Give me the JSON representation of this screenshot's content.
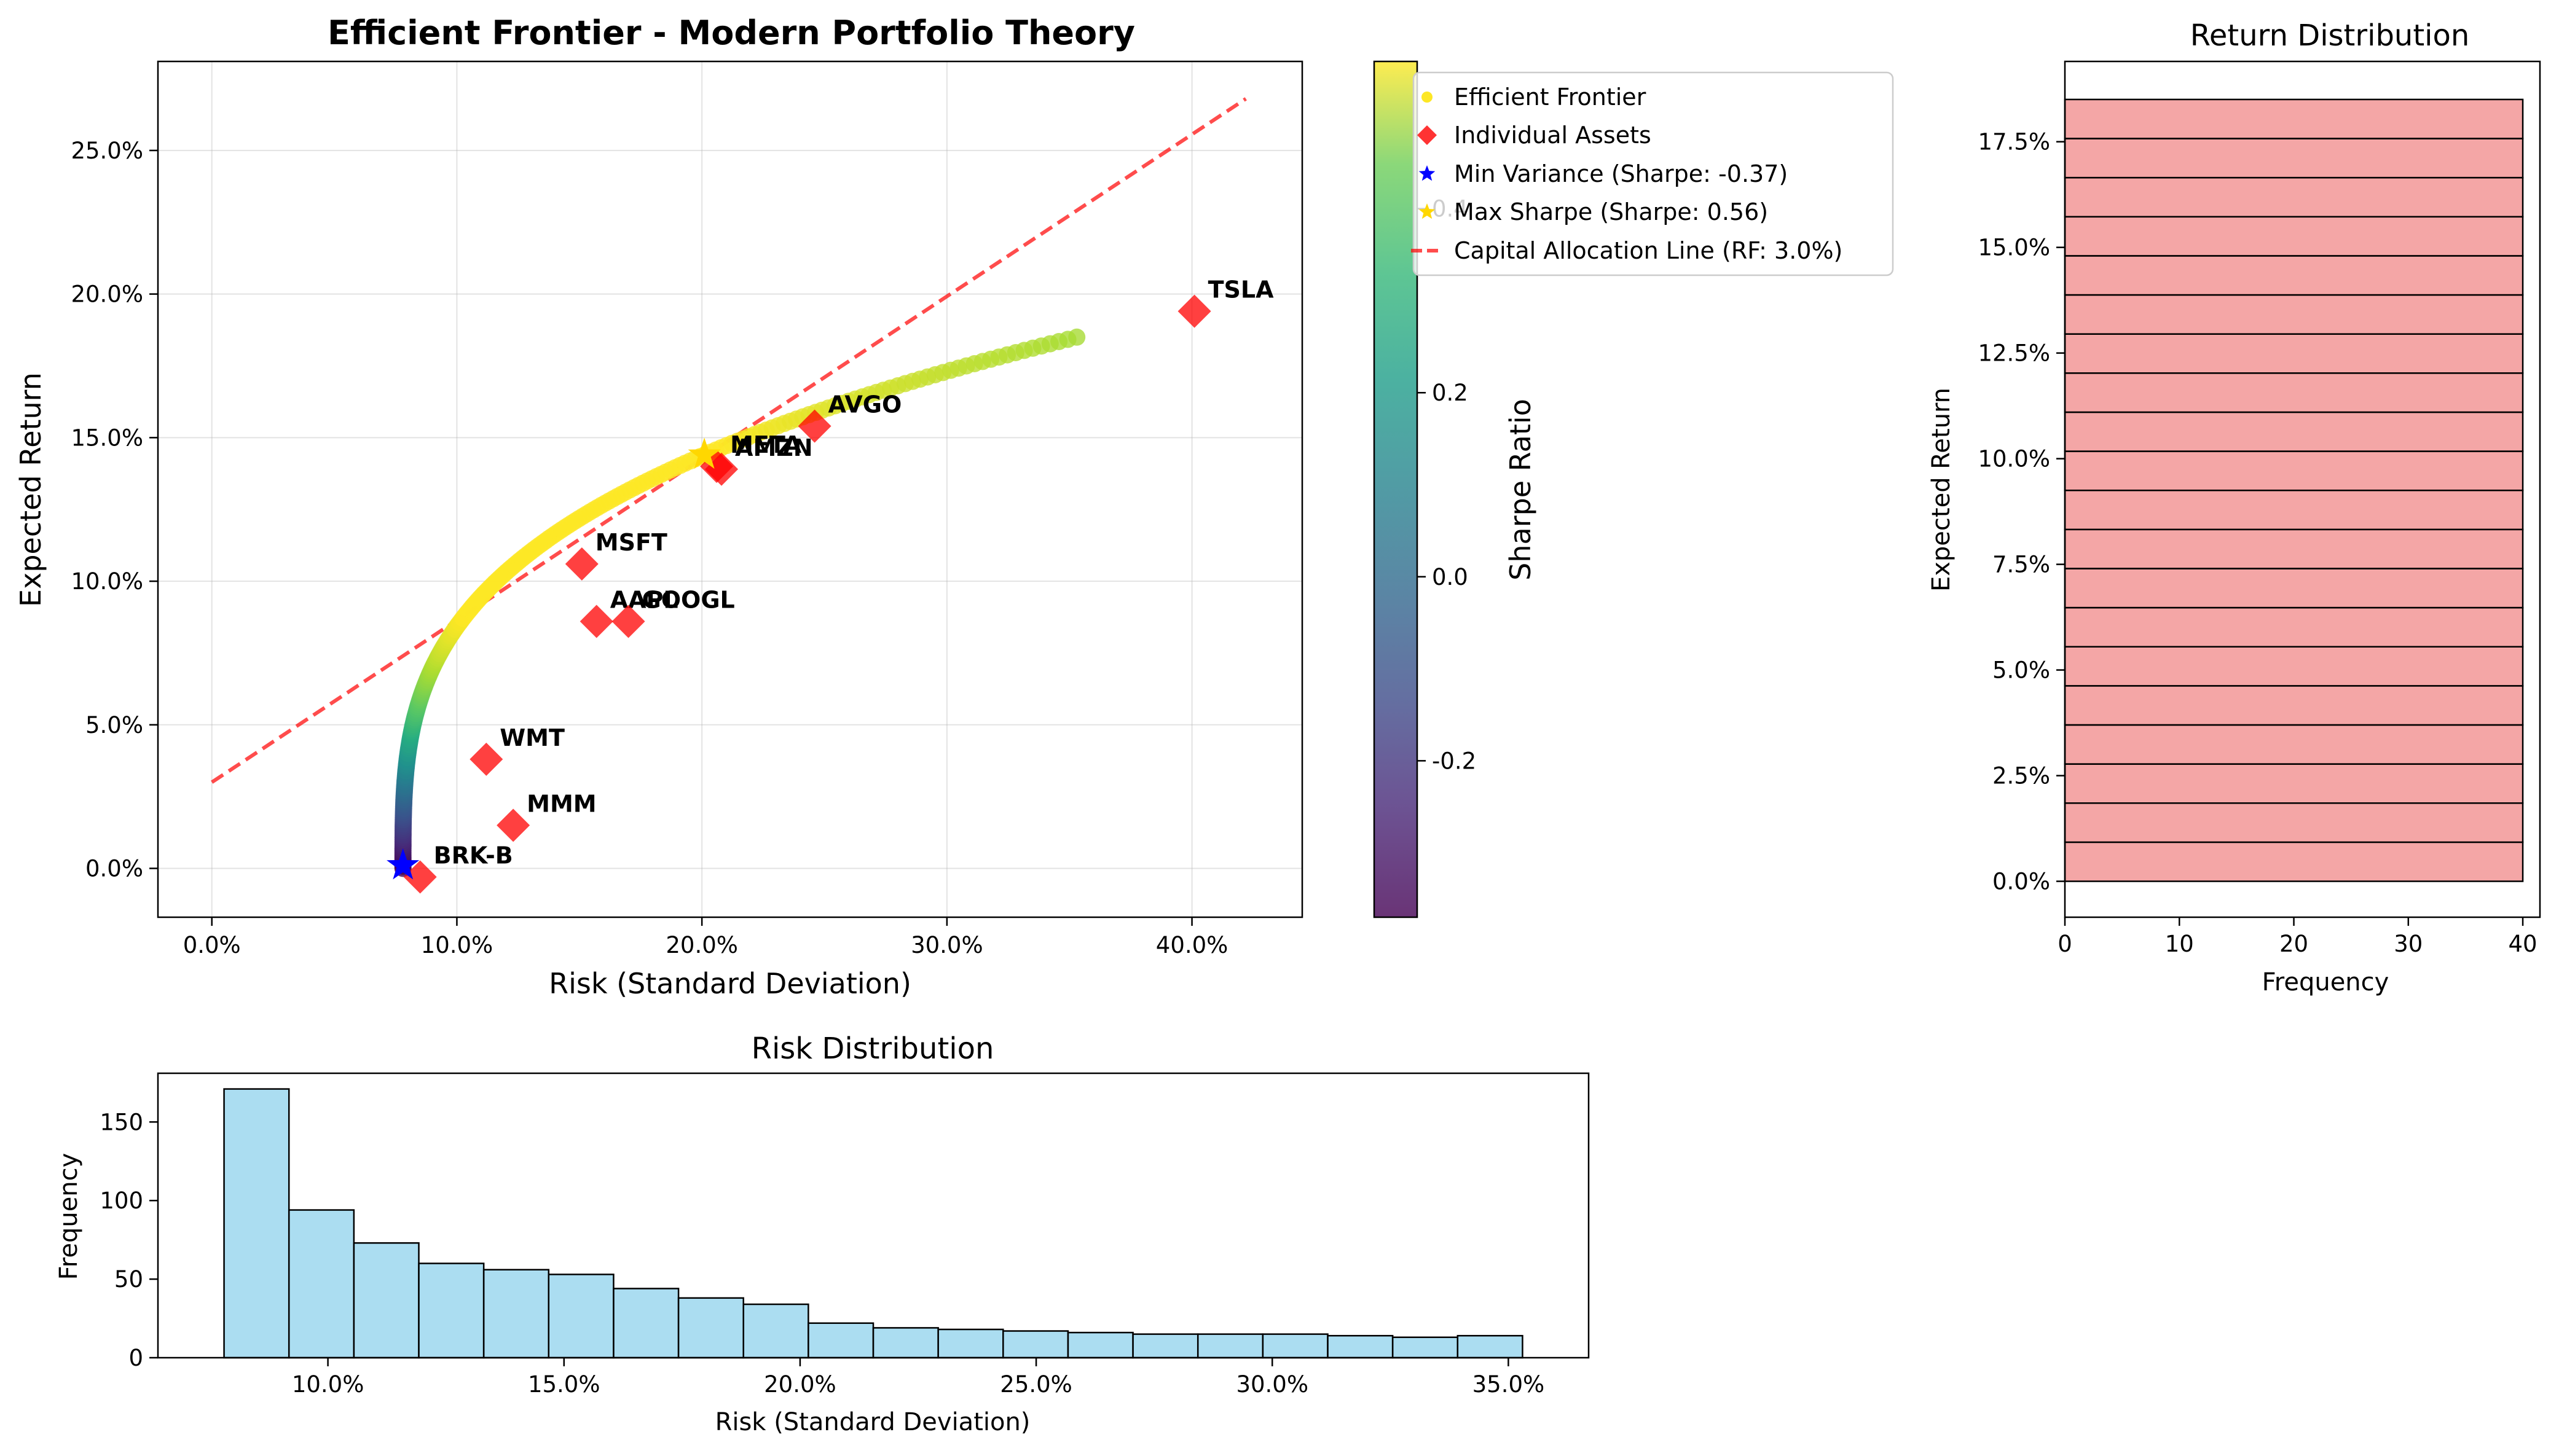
{
  "chart_data": [
    {
      "type": "scatter",
      "title": "Efficient Frontier - Modern Portfolio Theory",
      "xlabel": "Risk (Standard Deviation)",
      "ylabel": "Expected Return",
      "xlim": [
        -0.022,
        0.445
      ],
      "ylim": [
        -0.017,
        0.281
      ],
      "xticks": [
        "0.0%",
        "10.0%",
        "20.0%",
        "30.0%",
        "40.0%"
      ],
      "yticks": [
        "0.0%",
        "5.0%",
        "10.0%",
        "15.0%",
        "20.0%",
        "25.0%"
      ],
      "grid": true,
      "frontier": {
        "min_risk": 0.078,
        "min_return": 0.0,
        "max_risk": 0.353,
        "max_return": 0.185,
        "max_sharpe_point": [
          0.201,
          0.144
        ]
      },
      "assets": [
        {
          "name": "TSLA",
          "risk": 0.401,
          "return": 0.194
        },
        {
          "name": "AVGO",
          "risk": 0.246,
          "return": 0.154
        },
        {
          "name": "META",
          "risk": 0.206,
          "return": 0.14
        },
        {
          "name": "AMZN",
          "risk": 0.208,
          "return": 0.139
        },
        {
          "name": "MSFT",
          "risk": 0.151,
          "return": 0.106
        },
        {
          "name": "AAPL",
          "risk": 0.157,
          "return": 0.086
        },
        {
          "name": "GOOGL",
          "risk": 0.17,
          "return": 0.086
        },
        {
          "name": "WMT",
          "risk": 0.112,
          "return": 0.038
        },
        {
          "name": "MMM",
          "risk": 0.123,
          "return": 0.015
        },
        {
          "name": "BRK-B",
          "risk": 0.085,
          "return": -0.003
        }
      ],
      "min_variance": {
        "risk": 0.078,
        "return": 0.001
      },
      "max_sharpe": {
        "risk": 0.201,
        "return": 0.144
      },
      "cal": {
        "rf": 0.03,
        "x_end": 0.422,
        "y_end": 0.268
      },
      "legend": {
        "placement": "upper-right-outside",
        "entries": [
          "Efficient Frontier",
          "Individual Assets",
          "Min Variance (Sharpe: -0.37)",
          "Max Sharpe (Sharpe: 0.56)",
          "Capital Allocation Line (RF: 3.0%)"
        ]
      },
      "colorbar": {
        "label": "Sharpe Ratio",
        "range": [
          -0.37,
          0.56
        ],
        "ticks": [
          "-0.2",
          "0.0",
          "0.2",
          "0.4"
        ],
        "tick_values": [
          -0.2,
          0.0,
          0.2,
          0.4
        ]
      }
    },
    {
      "type": "bar",
      "title": "Return Distribution",
      "xlabel": "Frequency",
      "ylabel": "Expected Return",
      "orientation": "horizontal",
      "xlim": [
        0,
        41.5
      ],
      "ylim": [
        -0.0085,
        0.194
      ],
      "xticks": [
        "0",
        "10",
        "20",
        "30",
        "40"
      ],
      "xtick_values": [
        0,
        10,
        20,
        30,
        40
      ],
      "yticks": [
        "0.0%",
        "2.5%",
        "5.0%",
        "7.5%",
        "10.0%",
        "12.5%",
        "15.0%",
        "17.5%"
      ],
      "ytick_values": [
        0,
        0.025,
        0.05,
        0.075,
        0.1,
        0.125,
        0.15,
        0.175
      ],
      "bin_start": 0.0,
      "bin_end": 0.185,
      "values": [
        40,
        40,
        40,
        40,
        40,
        40,
        40,
        40,
        40,
        40,
        40,
        40,
        40,
        40,
        40,
        40,
        40,
        40,
        40,
        40
      ],
      "color": "#f08080"
    },
    {
      "type": "bar",
      "title": "Risk Distribution",
      "xlabel": "Risk (Standard Deviation)",
      "ylabel": "Frequency",
      "xlim": [
        0.064,
        0.367
      ],
      "ylim": [
        0,
        181
      ],
      "xticks": [
        "10.0%",
        "15.0%",
        "20.0%",
        "25.0%",
        "30.0%",
        "35.0%"
      ],
      "xtick_values": [
        0.1,
        0.15,
        0.2,
        0.25,
        0.3,
        0.35
      ],
      "yticks": [
        "0",
        "50",
        "100",
        "150"
      ],
      "ytick_values": [
        0,
        50,
        100,
        150
      ],
      "bin_start": 0.078,
      "bin_end": 0.353,
      "values": [
        171,
        94,
        73,
        60,
        56,
        53,
        44,
        38,
        34,
        22,
        19,
        18,
        17,
        16,
        15,
        15,
        15,
        14,
        13,
        14
      ],
      "color": "#87ceeb"
    }
  ]
}
